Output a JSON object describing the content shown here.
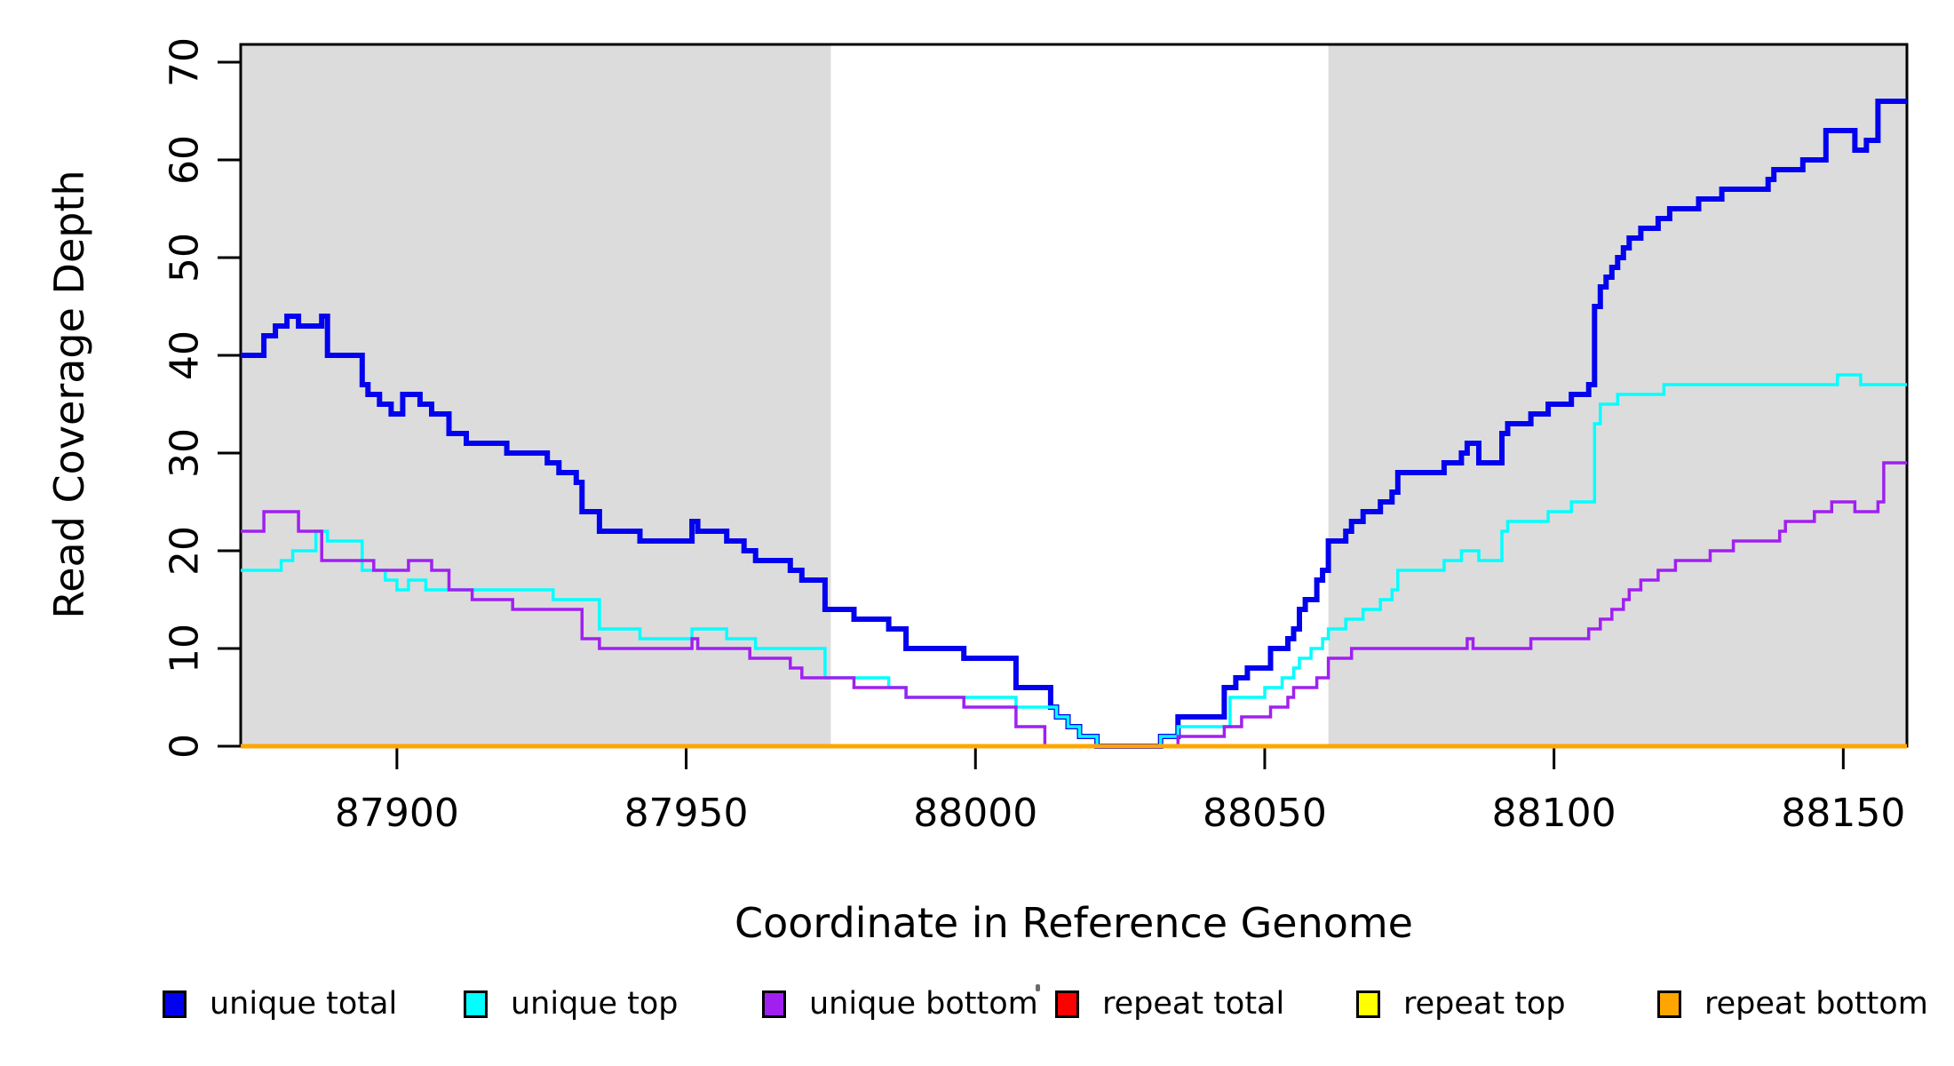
{
  "chart_data": {
    "type": "line",
    "subtype": "step",
    "xlabel": "Coordinate in Reference Genome",
    "ylabel": "Read Coverage Depth",
    "x_range": [
      87873,
      88161
    ],
    "y_range": [
      0,
      72
    ],
    "x_ticks": [
      "87900",
      "87950",
      "88000",
      "88050",
      "88100",
      "88150"
    ],
    "x_tick_values": [
      87900,
      87950,
      88000,
      88050,
      88100,
      88150
    ],
    "y_ticks": [
      "0",
      "10",
      "20",
      "30",
      "40",
      "50",
      "60",
      "70"
    ],
    "y_tick_values": [
      0,
      10,
      20,
      30,
      40,
      50,
      60,
      70
    ],
    "grid": false,
    "legend_position": "bottom",
    "shade_color": "#DCDCDC",
    "shaded_regions": [
      {
        "from": 87873,
        "to": 87975
      },
      {
        "from": 88061,
        "to": 88161
      }
    ],
    "series": [
      {
        "name": "unique total",
        "color": "#0202EF",
        "width": 6,
        "points": [
          [
            87873,
            40
          ],
          [
            87877,
            42
          ],
          [
            87879,
            43
          ],
          [
            87881,
            44
          ],
          [
            87883,
            43
          ],
          [
            87887,
            44
          ],
          [
            87888,
            40
          ],
          [
            87894,
            37
          ],
          [
            87895,
            36
          ],
          [
            87897,
            35
          ],
          [
            87899,
            34
          ],
          [
            87901,
            36
          ],
          [
            87904,
            35
          ],
          [
            87906,
            34
          ],
          [
            87909,
            32
          ],
          [
            87912,
            31
          ],
          [
            87919,
            30
          ],
          [
            87926,
            29
          ],
          [
            87928,
            28
          ],
          [
            87931,
            27
          ],
          [
            87932,
            24
          ],
          [
            87935,
            22
          ],
          [
            87942,
            21
          ],
          [
            87951,
            23
          ],
          [
            87952,
            22
          ],
          [
            87957,
            21
          ],
          [
            87960,
            20
          ],
          [
            87962,
            19
          ],
          [
            87968,
            18
          ],
          [
            87970,
            17
          ],
          [
            87974,
            14
          ],
          [
            87979,
            13
          ],
          [
            87985,
            12
          ],
          [
            87988,
            10
          ],
          [
            87998,
            9
          ],
          [
            88007,
            6
          ],
          [
            88013,
            4
          ],
          [
            88014,
            3
          ],
          [
            88016,
            2
          ],
          [
            88018,
            1
          ],
          [
            88021,
            0
          ],
          [
            88032,
            1
          ],
          [
            88035,
            3
          ],
          [
            88043,
            6
          ],
          [
            88045,
            7
          ],
          [
            88047,
            8
          ],
          [
            88051,
            10
          ],
          [
            88054,
            11
          ],
          [
            88055,
            12
          ],
          [
            88056,
            14
          ],
          [
            88057,
            15
          ],
          [
            88059,
            17
          ],
          [
            88060,
            18
          ],
          [
            88061,
            21
          ],
          [
            88064,
            22
          ],
          [
            88065,
            23
          ],
          [
            88067,
            24
          ],
          [
            88070,
            25
          ],
          [
            88072,
            26
          ],
          [
            88073,
            28
          ],
          [
            88081,
            29
          ],
          [
            88084,
            30
          ],
          [
            88085,
            31
          ],
          [
            88087,
            29
          ],
          [
            88091,
            32
          ],
          [
            88092,
            33
          ],
          [
            88096,
            34
          ],
          [
            88099,
            35
          ],
          [
            88103,
            36
          ],
          [
            88106,
            37
          ],
          [
            88107,
            45
          ],
          [
            88108,
            47
          ],
          [
            88109,
            48
          ],
          [
            88110,
            49
          ],
          [
            88111,
            50
          ],
          [
            88112,
            51
          ],
          [
            88113,
            52
          ],
          [
            88115,
            53
          ],
          [
            88118,
            54
          ],
          [
            88120,
            55
          ],
          [
            88125,
            56
          ],
          [
            88129,
            57
          ],
          [
            88137,
            58
          ],
          [
            88138,
            59
          ],
          [
            88143,
            60
          ],
          [
            88147,
            63
          ],
          [
            88152,
            61
          ],
          [
            88154,
            62
          ],
          [
            88156,
            66
          ],
          [
            88161,
            66
          ]
        ]
      },
      {
        "name": "unique top",
        "color": "#00FFFF",
        "width": 3.5,
        "points": [
          [
            87873,
            18
          ],
          [
            87880,
            19
          ],
          [
            87882,
            20
          ],
          [
            87886,
            22
          ],
          [
            87888,
            21
          ],
          [
            87894,
            18
          ],
          [
            87898,
            17
          ],
          [
            87900,
            16
          ],
          [
            87902,
            17
          ],
          [
            87905,
            16
          ],
          [
            87927,
            15
          ],
          [
            87935,
            12
          ],
          [
            87942,
            11
          ],
          [
            87951,
            12
          ],
          [
            87957,
            11
          ],
          [
            87962,
            10
          ],
          [
            87974,
            7
          ],
          [
            87985,
            6
          ],
          [
            87988,
            5
          ],
          [
            88007,
            4
          ],
          [
            88014,
            3
          ],
          [
            88016,
            2
          ],
          [
            88018,
            1
          ],
          [
            88021,
            0
          ],
          [
            88032,
            1
          ],
          [
            88035,
            2
          ],
          [
            88044,
            5
          ],
          [
            88050,
            6
          ],
          [
            88053,
            7
          ],
          [
            88055,
            8
          ],
          [
            88056,
            9
          ],
          [
            88058,
            10
          ],
          [
            88060,
            11
          ],
          [
            88061,
            12
          ],
          [
            88064,
            13
          ],
          [
            88067,
            14
          ],
          [
            88070,
            15
          ],
          [
            88072,
            16
          ],
          [
            88073,
            18
          ],
          [
            88081,
            19
          ],
          [
            88084,
            20
          ],
          [
            88087,
            19
          ],
          [
            88091,
            22
          ],
          [
            88092,
            23
          ],
          [
            88099,
            24
          ],
          [
            88103,
            25
          ],
          [
            88107,
            33
          ],
          [
            88108,
            35
          ],
          [
            88111,
            36
          ],
          [
            88119,
            37
          ],
          [
            88149,
            38
          ],
          [
            88153,
            37
          ],
          [
            88161,
            37
          ]
        ]
      },
      {
        "name": "unique bottom",
        "color": "#A020F0",
        "width": 3.5,
        "points": [
          [
            87873,
            22
          ],
          [
            87877,
            24
          ],
          [
            87883,
            22
          ],
          [
            87887,
            19
          ],
          [
            87896,
            18
          ],
          [
            87902,
            19
          ],
          [
            87906,
            18
          ],
          [
            87909,
            16
          ],
          [
            87913,
            15
          ],
          [
            87920,
            14
          ],
          [
            87932,
            11
          ],
          [
            87935,
            10
          ],
          [
            87951,
            11
          ],
          [
            87952,
            10
          ],
          [
            87961,
            9
          ],
          [
            87968,
            8
          ],
          [
            87970,
            7
          ],
          [
            87979,
            6
          ],
          [
            87988,
            5
          ],
          [
            87998,
            4
          ],
          [
            88007,
            2
          ],
          [
            88012,
            0
          ],
          [
            88035,
            1
          ],
          [
            88043,
            2
          ],
          [
            88046,
            3
          ],
          [
            88051,
            4
          ],
          [
            88054,
            5
          ],
          [
            88055,
            6
          ],
          [
            88059,
            7
          ],
          [
            88061,
            9
          ],
          [
            88065,
            10
          ],
          [
            88085,
            11
          ],
          [
            88086,
            10
          ],
          [
            88096,
            11
          ],
          [
            88106,
            12
          ],
          [
            88108,
            13
          ],
          [
            88110,
            14
          ],
          [
            88112,
            15
          ],
          [
            88113,
            16
          ],
          [
            88115,
            17
          ],
          [
            88118,
            18
          ],
          [
            88121,
            19
          ],
          [
            88127,
            20
          ],
          [
            88131,
            21
          ],
          [
            88139,
            22
          ],
          [
            88140,
            23
          ],
          [
            88145,
            24
          ],
          [
            88148,
            25
          ],
          [
            88152,
            24
          ],
          [
            88156,
            25
          ],
          [
            88157,
            29
          ],
          [
            88161,
            29
          ]
        ]
      },
      {
        "name": "repeat total",
        "color": "#FF0000",
        "width": 3.5,
        "points": [
          [
            87873,
            0
          ],
          [
            88161,
            0
          ]
        ]
      },
      {
        "name": "repeat top",
        "color": "#FFFF00",
        "width": 3.5,
        "points": [
          [
            87873,
            0
          ],
          [
            88161,
            0
          ]
        ]
      },
      {
        "name": "repeat bottom",
        "color": "#FFA500",
        "width": 5,
        "points": [
          [
            87873,
            0
          ],
          [
            88161,
            0
          ]
        ]
      }
    ]
  },
  "labels": {
    "y_axis_title": "Read Coverage Depth",
    "x_axis_title": "Coordinate in Reference Genome"
  },
  "legend": {
    "items": [
      {
        "label": "unique total",
        "color": "#0202EF"
      },
      {
        "label": "unique top",
        "color": "#00FFFF"
      },
      {
        "label": "unique bottom",
        "color": "#A020F0"
      },
      {
        "label": "repeat total",
        "color": "#FF0000"
      },
      {
        "label": "repeat top",
        "color": "#FFFF00"
      },
      {
        "label": "repeat bottom",
        "color": "#FFA500"
      }
    ]
  }
}
